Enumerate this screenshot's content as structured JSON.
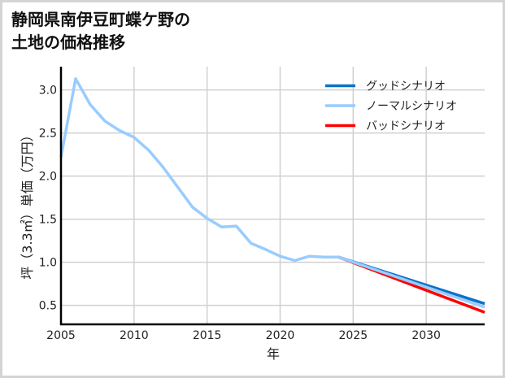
{
  "title": {
    "line1": "静岡県南伊豆町蝶ケ野の",
    "line2": "土地の価格推移"
  },
  "colors": {
    "good": "#0a72c8",
    "normal": "#99ccff",
    "bad": "#ff0000",
    "grid": "#d0d0d0",
    "axis": "#000000",
    "frame": "#d4d4d4"
  },
  "chart_data": {
    "type": "line",
    "title": "静岡県南伊豆町蝶ケ野の土地の価格推移",
    "xlabel": "年",
    "ylabel": "坪（3.3㎡）単価（万円）",
    "xlim": [
      2005,
      2034
    ],
    "ylim": [
      0.28,
      3.27
    ],
    "xticks": [
      2005,
      2010,
      2015,
      2020,
      2025,
      2030
    ],
    "xtick_labels": [
      "2005",
      "2010",
      "2015",
      "2020",
      "2025",
      "2030"
    ],
    "yticks": [
      0.5,
      1.0,
      1.5,
      2.0,
      2.5,
      3.0
    ],
    "ytick_labels": [
      "0.5",
      "1.0",
      "1.5",
      "2.0",
      "2.5",
      "3.0"
    ],
    "grid": true,
    "legend_position": "upper right",
    "series": [
      {
        "name": "グッドシナリオ",
        "color": "#0a72c8",
        "x": [
          2024,
          2034
        ],
        "values": [
          1.06,
          0.52
        ]
      },
      {
        "name": "ノーマルシナリオ",
        "color": "#99ccff",
        "x": [
          2005,
          2006,
          2007,
          2008,
          2009,
          2010,
          2011,
          2012,
          2013,
          2014,
          2015,
          2016,
          2017,
          2018,
          2019,
          2020,
          2021,
          2022,
          2023,
          2024,
          2034
        ],
        "values": [
          2.22,
          3.13,
          2.83,
          2.64,
          2.53,
          2.45,
          2.3,
          2.1,
          1.87,
          1.64,
          1.51,
          1.41,
          1.42,
          1.22,
          1.15,
          1.07,
          1.02,
          1.07,
          1.06,
          1.06,
          0.48
        ]
      },
      {
        "name": "バッドシナリオ",
        "color": "#ff0000",
        "x": [
          2024,
          2034
        ],
        "values": [
          1.06,
          0.42
        ]
      }
    ]
  }
}
